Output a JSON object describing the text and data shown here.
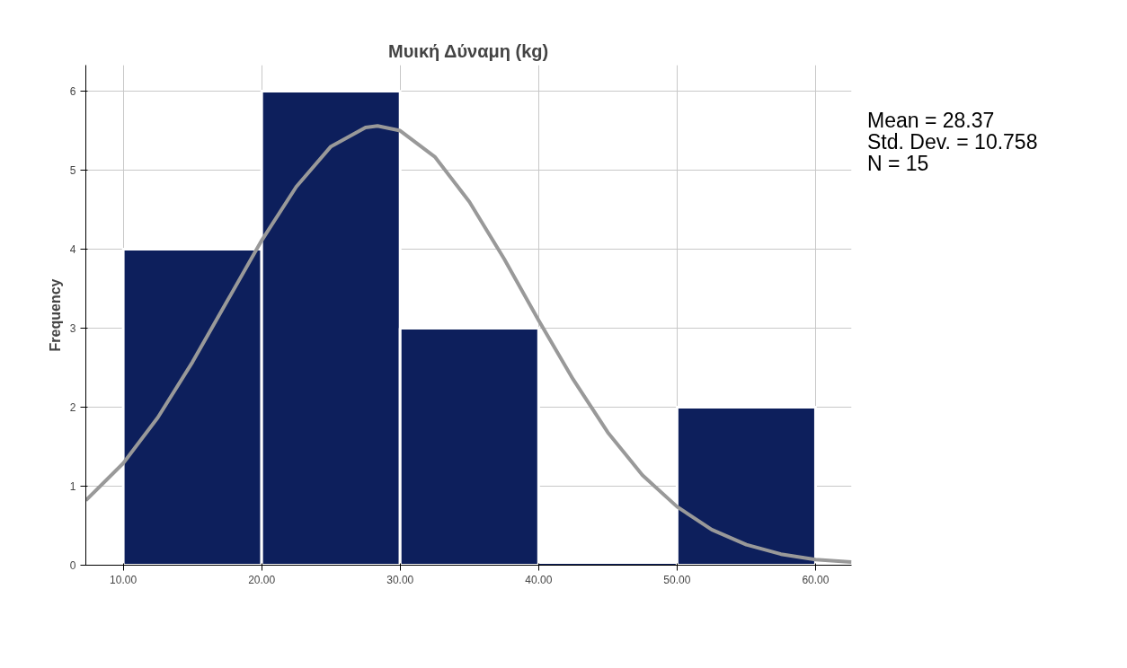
{
  "chart_data": {
    "type": "histogram",
    "title": "Μυική Δύναμη (kg)",
    "ylabel": "Frequency",
    "bins": [
      10,
      20,
      30,
      40,
      50,
      60
    ],
    "values": [
      4,
      6,
      3,
      0,
      2
    ],
    "color": "#0d1f5c",
    "series": [
      {
        "type": "line",
        "color": "#999999",
        "x": [
          7.3,
          10,
          12.5,
          15,
          17.5,
          20,
          22.5,
          25,
          27.5,
          28.37,
          30,
          32.5,
          35,
          37.5,
          40,
          42.5,
          45,
          47.5,
          50,
          52.5,
          55,
          57.5,
          60,
          62.6
        ],
        "values": [
          0.82,
          1.29,
          1.87,
          2.57,
          3.34,
          4.11,
          4.79,
          5.3,
          5.54,
          5.56,
          5.5,
          5.17,
          4.6,
          3.88,
          3.1,
          2.35,
          1.68,
          1.14,
          0.74,
          0.45,
          0.26,
          0.14,
          0.07,
          0.04
        ]
      }
    ],
    "xlim": [
      7.3,
      62.6
    ],
    "ylim": [
      0,
      6.33
    ],
    "xticks": [
      {
        "value": 10,
        "label": "10.00"
      },
      {
        "value": 20,
        "label": "20.00"
      },
      {
        "value": 30,
        "label": "30.00"
      },
      {
        "value": 40,
        "label": "40.00"
      },
      {
        "value": 50,
        "label": "50.00"
      },
      {
        "value": 60,
        "label": "60.00"
      }
    ],
    "yticks": [
      0,
      1,
      2,
      3,
      4,
      5,
      6
    ],
    "grid": true,
    "annotations": [
      "Mean = 28.37",
      "Std. Dev. = 10.758",
      "N = 15"
    ]
  }
}
